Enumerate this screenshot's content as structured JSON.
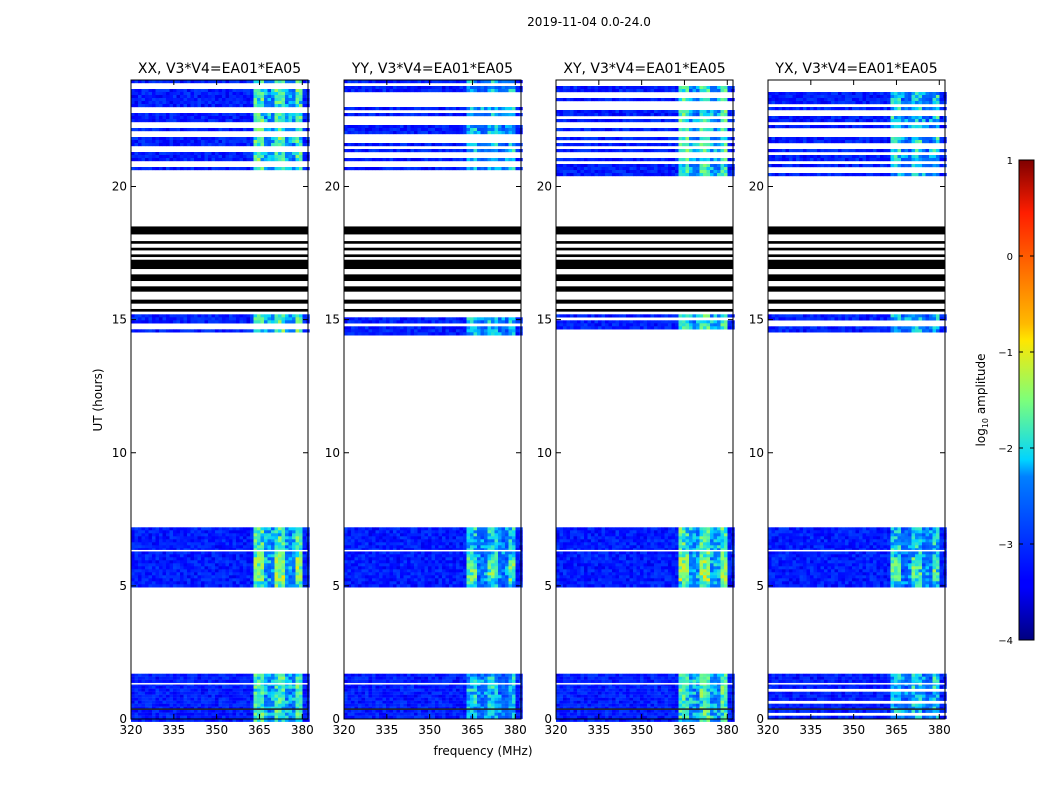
{
  "figure_title": "2019-11-04 0.0-24.0",
  "shared_xlabel": "frequency (MHz)",
  "shared_ylabel": "UT (hours)",
  "colorbar": {
    "label": "log",
    "label_sub": "10",
    "label_rest": " amplitude",
    "ticks": [
      1,
      0,
      -1,
      -2,
      -3,
      -4
    ],
    "range": [
      -4,
      1
    ]
  },
  "chart_data": [
    {
      "type": "heatmap",
      "title": "XX, V3*V4=EA01*EA05",
      "xlabel": "",
      "ylabel": "UT (hours)",
      "xlim": [
        320,
        382
      ],
      "ylim": [
        0,
        24
      ],
      "xticks": [
        320,
        335,
        350,
        365,
        380
      ],
      "yticks": [
        0,
        5,
        10,
        15,
        20
      ]
    },
    {
      "type": "heatmap",
      "title": "YY, V3*V4=EA01*EA05",
      "xlabel": "frequency (MHz)",
      "ylabel": "",
      "xlim": [
        320,
        382
      ],
      "ylim": [
        0,
        24
      ],
      "xticks": [
        320,
        335,
        350,
        365,
        380
      ],
      "yticks": [
        0,
        5,
        10,
        15,
        20
      ]
    },
    {
      "type": "heatmap",
      "title": "XY, V3*V4=EA01*EA05",
      "xlabel": "",
      "ylabel": "",
      "xlim": [
        320,
        382
      ],
      "ylim": [
        0,
        24
      ],
      "xticks": [
        320,
        335,
        350,
        365,
        380
      ],
      "yticks": [
        0,
        5,
        10,
        15,
        20
      ]
    },
    {
      "type": "heatmap",
      "title": "YX, V3*V4=EA01*EA05",
      "xlabel": "",
      "ylabel": "",
      "xlim": [
        320,
        382
      ],
      "ylim": [
        0,
        24
      ],
      "xticks": [
        320,
        335,
        350,
        365,
        380
      ],
      "yticks": [
        0,
        5,
        10,
        15,
        20
      ]
    }
  ],
  "data_blocks": {
    "background_log_amp": -3.2,
    "rfi_band_mhz": [
      362,
      380
    ],
    "blocks_hours": [
      [
        0,
        1.7
      ],
      [
        5.0,
        7.2
      ],
      [
        14.5,
        15.2
      ],
      [
        20.5,
        24.0
      ]
    ],
    "flagged_hours": [
      [
        15.2,
        18.5
      ]
    ]
  }
}
